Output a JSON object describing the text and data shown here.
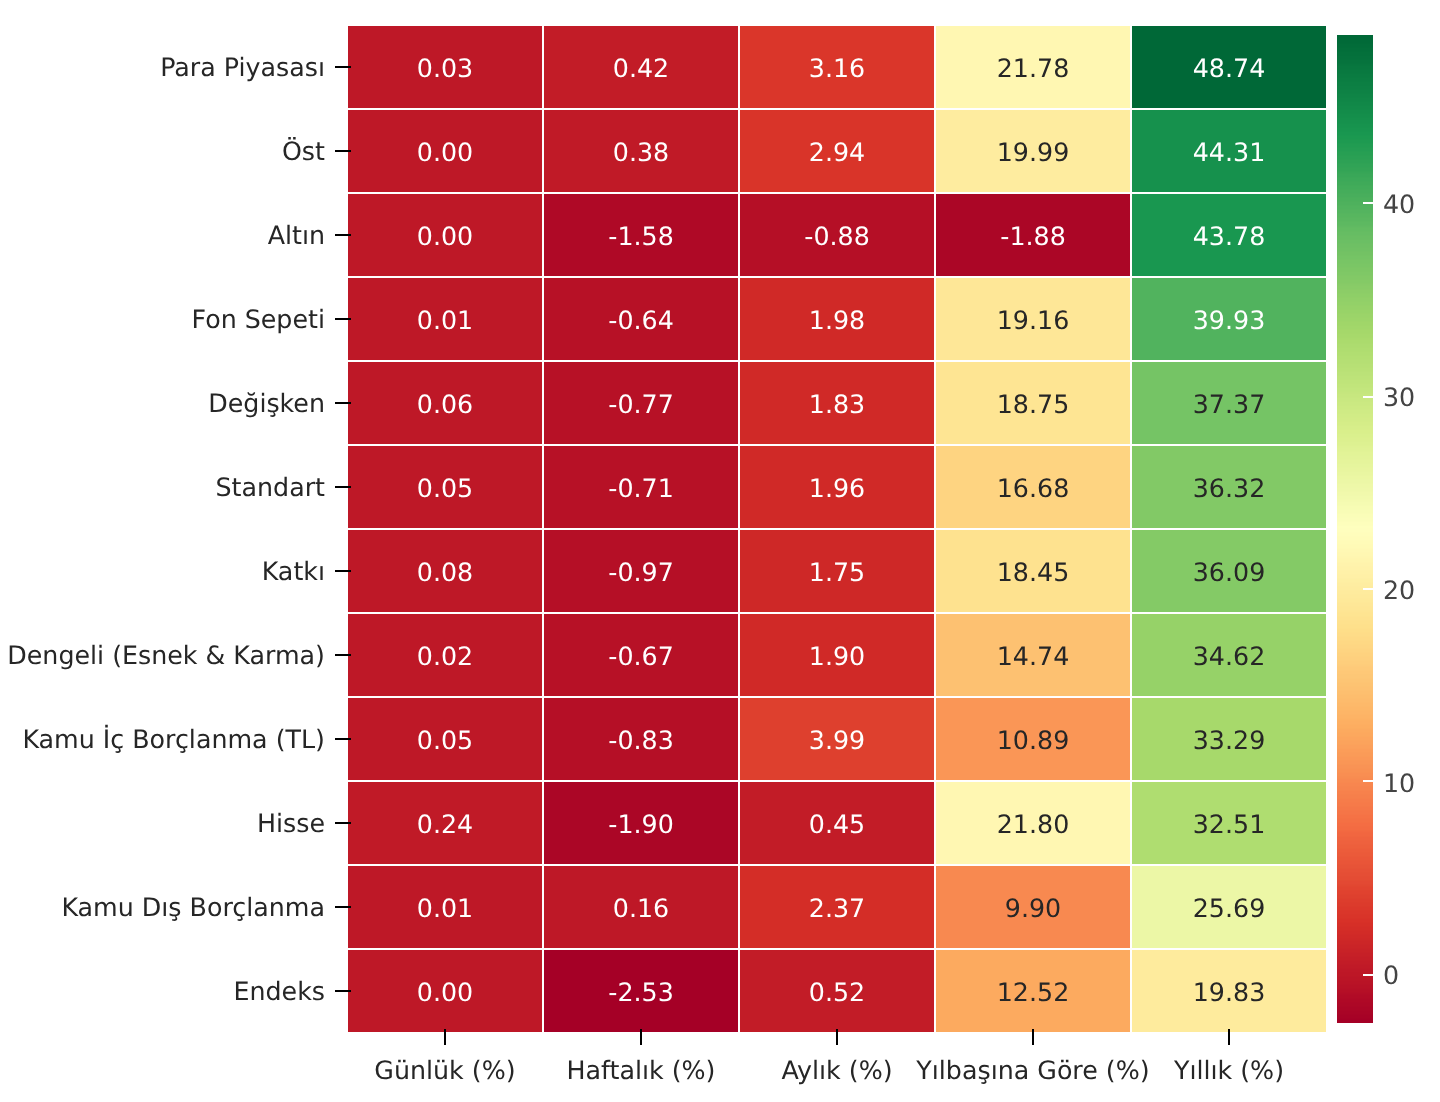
{
  "chart_data": {
    "type": "heatmap",
    "categories": [
      "Günlük (%)",
      "Haftalık (%)",
      "Aylık (%)",
      "Yılbaşına Göre (%)",
      "Yıllık (%)"
    ],
    "y_categories": [
      "Para Piyasası",
      "Öst",
      "Altın",
      "Fon Sepeti",
      "Değişken",
      "Standart",
      "Katkı",
      "Dengeli (Esnek & Karma)",
      "Kamu İç Borçlanma (TL)",
      "Hisse",
      "Kamu Dış Borçlanma",
      "Endeks"
    ],
    "cells": [
      [
        0.03,
        0.42,
        3.16,
        21.78,
        48.74
      ],
      [
        0.0,
        0.38,
        2.94,
        19.99,
        44.31
      ],
      [
        0.0,
        -1.58,
        -0.88,
        -1.88,
        43.78
      ],
      [
        0.01,
        -0.64,
        1.98,
        19.16,
        39.93
      ],
      [
        0.06,
        -0.77,
        1.83,
        18.75,
        37.37
      ],
      [
        0.05,
        -0.71,
        1.96,
        16.68,
        36.32
      ],
      [
        0.08,
        -0.97,
        1.75,
        18.45,
        36.09
      ],
      [
        0.02,
        -0.67,
        1.9,
        14.74,
        34.62
      ],
      [
        0.05,
        -0.83,
        3.99,
        10.89,
        33.29
      ],
      [
        0.24,
        -1.9,
        0.45,
        21.8,
        32.51
      ],
      [
        0.01,
        0.16,
        2.37,
        9.9,
        25.69
      ],
      [
        0.0,
        -2.53,
        0.52,
        12.52,
        19.83
      ]
    ],
    "cell_labels": [
      [
        "0.03",
        "0.42",
        "3.16",
        "21.78",
        "48.74"
      ],
      [
        "0.00",
        "0.38",
        "2.94",
        "19.99",
        "44.31"
      ],
      [
        "0.00",
        "-1.58",
        "-0.88",
        "-1.88",
        "43.78"
      ],
      [
        "0.01",
        "-0.64",
        "1.98",
        "19.16",
        "39.93"
      ],
      [
        "0.06",
        "-0.77",
        "1.83",
        "18.75",
        "37.37"
      ],
      [
        "0.05",
        "-0.71",
        "1.96",
        "16.68",
        "36.32"
      ],
      [
        "0.08",
        "-0.97",
        "1.75",
        "18.45",
        "36.09"
      ],
      [
        "0.02",
        "-0.67",
        "1.90",
        "14.74",
        "34.62"
      ],
      [
        "0.05",
        "-0.83",
        "3.99",
        "10.89",
        "33.29"
      ],
      [
        "0.24",
        "-1.90",
        "0.45",
        "21.80",
        "32.51"
      ],
      [
        "0.01",
        "0.16",
        "2.37",
        "9.90",
        "25.69"
      ],
      [
        "0.00",
        "-2.53",
        "0.52",
        "12.52",
        "19.83"
      ]
    ],
    "clim": [
      -2.53,
      48.74
    ],
    "cticks": [
      0,
      10,
      20,
      30,
      40
    ]
  }
}
